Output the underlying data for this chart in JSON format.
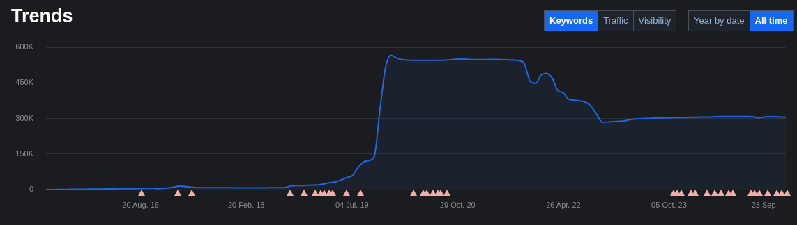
{
  "chart_data": {
    "type": "area",
    "title": "Trends",
    "annotations": [
      "Keywords",
      "Traffic",
      "Visibility",
      "Year by date",
      "All time"
    ],
    "categories": [
      null,
      null,
      null,
      null,
      null,
      null,
      null,
      null,
      null,
      null,
      null,
      null,
      null,
      null,
      null,
      null,
      null,
      "20 Aug. 16",
      null,
      null,
      null,
      null,
      null,
      null,
      null,
      null,
      null,
      null,
      null,
      null,
      null,
      null,
      null,
      null,
      null,
      null,
      "20 Feb. 18",
      null,
      null,
      null,
      null,
      null,
      null,
      null,
      null,
      null,
      null,
      null,
      null,
      null,
      null,
      null,
      null,
      null,
      null,
      "04 Jul. 19",
      null,
      null,
      null,
      null,
      null,
      null,
      null,
      null,
      null,
      null,
      null,
      null,
      null,
      null,
      null,
      null,
      null,
      null,
      "29 Oct. 20",
      null,
      null,
      null,
      null,
      null,
      null,
      null,
      null,
      null,
      null,
      null,
      null,
      null,
      null,
      null,
      null,
      null,
      null,
      "26 Apr. 22",
      null,
      null,
      null,
      null,
      null,
      null,
      null,
      null,
      null,
      null,
      null,
      null,
      null,
      null,
      null,
      null,
      null,
      null,
      "05 Oct. 23",
      null,
      null,
      null,
      null,
      null,
      null,
      null,
      null,
      null,
      null,
      null,
      null,
      null,
      null,
      null,
      null,
      "23 Sep",
      null,
      null,
      null,
      null
    ],
    "series": [
      {
        "color": "#1f66e5",
        "values": [
          0,
          300,
          500,
          700,
          1000,
          1200,
          1500,
          1800,
          2000,
          2200,
          2500,
          2800,
          3000,
          3300,
          3500,
          3800,
          4000,
          4500,
          5000,
          6000,
          4000,
          5000,
          7000,
          10000,
          15000,
          13000,
          10000,
          8000,
          8000,
          8000,
          8000,
          8000,
          8000,
          8000,
          7000,
          7000,
          7000,
          7000,
          7000,
          7000,
          8000,
          8000,
          8000,
          9000,
          15000,
          17000,
          17000,
          18000,
          19000,
          20000,
          24000,
          29000,
          32000,
          40000,
          50000,
          58000,
          90000,
          115000,
          122000,
          140000,
          330000,
          510000,
          566000,
          555000,
          548000,
          546000,
          545000,
          545000,
          545000,
          545000,
          545000,
          545000,
          546000,
          548000,
          550000,
          550000,
          549000,
          548000,
          548000,
          548000,
          549000,
          549000,
          548000,
          547000,
          546000,
          544000,
          530000,
          458000,
          448000,
          482000,
          490000,
          470000,
          418000,
          408000,
          380000,
          377000,
          374000,
          368000,
          351000,
          317000,
          284000,
          285000,
          287000,
          288000,
          290000,
          295000,
          298000,
          299000,
          300000,
          301000,
          302000,
          302000,
          303000,
          303000,
          304000,
          304000,
          305000,
          305000,
          306000,
          306000,
          307000,
          308000,
          308000,
          308000,
          308000,
          308000,
          308000,
          307000,
          303000,
          306000,
          307000,
          307000,
          306000,
          305000
        ]
      }
    ],
    "ylim": [
      0,
      600000
    ],
    "yticks": [
      {
        "value": 0,
        "label": "0"
      },
      {
        "value": 150000,
        "label": "150K"
      },
      {
        "value": 300000,
        "label": "300K"
      },
      {
        "value": 450000,
        "label": "450K"
      },
      {
        "value": 600000,
        "label": "600K"
      }
    ],
    "grid": "y",
    "legend": false,
    "marker": "none",
    "line_style": "solid"
  }
}
